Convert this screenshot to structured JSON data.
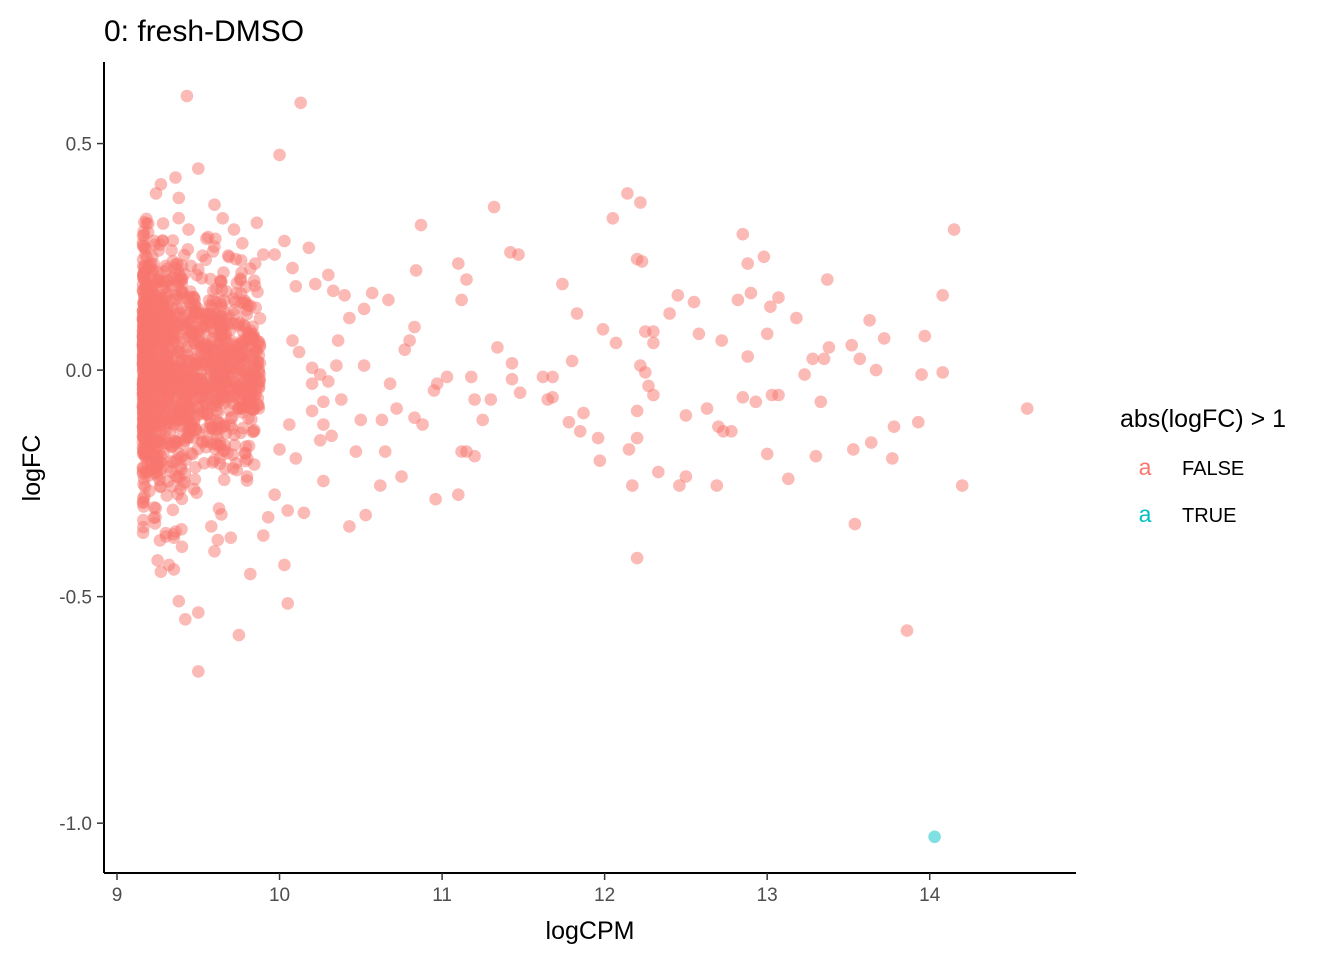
{
  "chart_data": {
    "type": "scatter",
    "title": "0: fresh-DMSO",
    "xlabel": "logCPM",
    "ylabel": "logFC",
    "xlim": [
      8.92,
      14.9
    ],
    "ylim": [
      -1.11,
      0.68
    ],
    "x_ticks": [
      "9",
      "10",
      "11",
      "12",
      "13",
      "14"
    ],
    "x_tick_values": [
      9,
      10,
      11,
      12,
      13,
      14
    ],
    "y_ticks": [
      "0.5",
      "0.0",
      "-0.5",
      "-1.0"
    ],
    "y_tick_values": [
      0.5,
      0.0,
      -0.5,
      -1.0
    ],
    "grid": false,
    "legend": {
      "title": "abs(logFC) > 1",
      "placement": "right",
      "entries": [
        {
          "label": "FALSE",
          "color": "#F8766D",
          "key": "a"
        },
        {
          "label": "TRUE",
          "color": "#00BFC4",
          "key": "a"
        }
      ]
    },
    "series": [
      {
        "name": "FALSE",
        "color": "#F8766D",
        "points": [
          [
            9.43,
            0.605
          ],
          [
            10.13,
            0.59
          ],
          [
            10.0,
            0.475
          ],
          [
            9.5,
            0.445
          ],
          [
            9.36,
            0.425
          ],
          [
            9.27,
            0.41
          ],
          [
            9.38,
            0.38
          ],
          [
            9.6,
            0.365
          ],
          [
            9.24,
            0.39
          ],
          [
            9.65,
            0.335
          ],
          [
            9.44,
            0.31
          ],
          [
            9.86,
            0.325
          ],
          [
            9.72,
            0.31
          ],
          [
            9.55,
            0.29
          ],
          [
            10.03,
            0.285
          ],
          [
            10.18,
            0.27
          ],
          [
            9.9,
            0.255
          ],
          [
            9.97,
            0.255
          ],
          [
            10.3,
            0.21
          ],
          [
            10.1,
            0.185
          ],
          [
            10.22,
            0.19
          ],
          [
            9.73,
            0.245
          ],
          [
            9.85,
            0.235
          ],
          [
            10.08,
            0.225
          ],
          [
            10.33,
            0.175
          ],
          [
            10.4,
            0.165
          ],
          [
            10.57,
            0.17
          ],
          [
            10.67,
            0.155
          ],
          [
            10.43,
            0.115
          ],
          [
            10.52,
            0.135
          ],
          [
            10.36,
            0.065
          ],
          [
            10.52,
            0.01
          ],
          [
            10.5,
            -0.11
          ],
          [
            10.47,
            -0.18
          ],
          [
            10.53,
            -0.32
          ],
          [
            10.43,
            -0.345
          ],
          [
            10.63,
            -0.11
          ],
          [
            10.65,
            -0.18
          ],
          [
            10.62,
            -0.255
          ],
          [
            10.75,
            -0.235
          ],
          [
            10.72,
            -0.085
          ],
          [
            10.68,
            -0.03
          ],
          [
            10.77,
            0.045
          ],
          [
            10.8,
            0.065
          ],
          [
            10.83,
            0.095
          ],
          [
            10.84,
            0.22
          ],
          [
            10.87,
            0.32
          ],
          [
            10.83,
            -0.105
          ],
          [
            10.88,
            -0.12
          ],
          [
            10.95,
            -0.045
          ],
          [
            10.97,
            -0.03
          ],
          [
            11.03,
            -0.015
          ],
          [
            10.96,
            -0.285
          ],
          [
            11.1,
            -0.275
          ],
          [
            11.12,
            -0.18
          ],
          [
            11.15,
            -0.18
          ],
          [
            11.2,
            -0.19
          ],
          [
            11.2,
            -0.065
          ],
          [
            11.25,
            -0.11
          ],
          [
            11.3,
            -0.065
          ],
          [
            11.18,
            -0.015
          ],
          [
            11.12,
            0.155
          ],
          [
            11.15,
            0.2
          ],
          [
            11.1,
            0.235
          ],
          [
            11.32,
            0.36
          ],
          [
            11.34,
            0.05
          ],
          [
            11.42,
            0.26
          ],
          [
            11.47,
            0.255
          ],
          [
            11.43,
            0.015
          ],
          [
            11.43,
            -0.02
          ],
          [
            11.48,
            -0.05
          ],
          [
            11.62,
            -0.015
          ],
          [
            11.68,
            -0.015
          ],
          [
            11.65,
            -0.065
          ],
          [
            11.68,
            -0.06
          ],
          [
            11.74,
            0.19
          ],
          [
            11.8,
            0.02
          ],
          [
            11.78,
            -0.115
          ],
          [
            11.83,
            0.125
          ],
          [
            11.85,
            -0.135
          ],
          [
            11.87,
            -0.095
          ],
          [
            11.96,
            -0.15
          ],
          [
            11.97,
            -0.2
          ],
          [
            11.99,
            0.09
          ],
          [
            12.05,
            0.335
          ],
          [
            12.07,
            0.06
          ],
          [
            12.14,
            0.39
          ],
          [
            12.22,
            0.37
          ],
          [
            12.2,
            0.245
          ],
          [
            12.23,
            0.24
          ],
          [
            12.25,
            0.085
          ],
          [
            12.3,
            0.085
          ],
          [
            12.15,
            -0.175
          ],
          [
            12.17,
            -0.255
          ],
          [
            12.2,
            -0.415
          ],
          [
            12.2,
            -0.15
          ],
          [
            12.2,
            -0.09
          ],
          [
            12.22,
            0.01
          ],
          [
            12.25,
            -0.005
          ],
          [
            12.27,
            -0.035
          ],
          [
            12.3,
            -0.055
          ],
          [
            12.3,
            0.06
          ],
          [
            12.33,
            -0.225
          ],
          [
            12.4,
            0.125
          ],
          [
            12.45,
            0.165
          ],
          [
            12.46,
            -0.255
          ],
          [
            12.5,
            -0.235
          ],
          [
            12.5,
            -0.1
          ],
          [
            12.55,
            0.15
          ],
          [
            12.58,
            0.08
          ],
          [
            12.63,
            -0.085
          ],
          [
            12.69,
            -0.255
          ],
          [
            12.7,
            -0.125
          ],
          [
            12.73,
            -0.135
          ],
          [
            12.72,
            0.065
          ],
          [
            12.78,
            -0.135
          ],
          [
            12.82,
            0.155
          ],
          [
            12.85,
            0.3
          ],
          [
            12.88,
            0.235
          ],
          [
            12.9,
            0.17
          ],
          [
            12.88,
            0.03
          ],
          [
            12.85,
            -0.06
          ],
          [
            12.93,
            -0.07
          ],
          [
            12.98,
            0.25
          ],
          [
            13.0,
            0.08
          ],
          [
            13.02,
            0.14
          ],
          [
            13.07,
            0.16
          ],
          [
            13.0,
            -0.185
          ],
          [
            13.03,
            -0.055
          ],
          [
            13.07,
            -0.055
          ],
          [
            13.13,
            -0.24
          ],
          [
            13.18,
            0.115
          ],
          [
            13.23,
            -0.01
          ],
          [
            13.28,
            0.025
          ],
          [
            13.3,
            -0.19
          ],
          [
            13.33,
            -0.07
          ],
          [
            13.35,
            0.025
          ],
          [
            13.37,
            0.2
          ],
          [
            13.38,
            0.05
          ],
          [
            13.52,
            0.055
          ],
          [
            13.53,
            -0.175
          ],
          [
            13.54,
            -0.34
          ],
          [
            13.57,
            0.025
          ],
          [
            13.63,
            0.11
          ],
          [
            13.64,
            -0.16
          ],
          [
            13.67,
            0.0
          ],
          [
            13.72,
            0.07
          ],
          [
            13.77,
            -0.195
          ],
          [
            13.78,
            -0.125
          ],
          [
            13.86,
            -0.575
          ],
          [
            13.93,
            -0.115
          ],
          [
            13.95,
            -0.01
          ],
          [
            13.97,
            0.075
          ],
          [
            14.08,
            -0.005
          ],
          [
            14.08,
            0.165
          ],
          [
            14.15,
            0.31
          ],
          [
            14.2,
            -0.255
          ],
          [
            14.6,
            -0.085
          ],
          [
            9.75,
            -0.585
          ],
          [
            9.5,
            -0.665
          ],
          [
            9.5,
            -0.535
          ],
          [
            9.38,
            -0.51
          ],
          [
            9.42,
            -0.55
          ],
          [
            9.82,
            -0.45
          ],
          [
            10.05,
            -0.515
          ],
          [
            10.03,
            -0.43
          ],
          [
            9.6,
            -0.4
          ],
          [
            9.7,
            -0.37
          ],
          [
            9.62,
            -0.375
          ],
          [
            9.9,
            -0.365
          ],
          [
            9.58,
            -0.345
          ],
          [
            9.93,
            -0.325
          ],
          [
            10.05,
            -0.31
          ],
          [
            10.15,
            -0.315
          ],
          [
            9.97,
            -0.275
          ],
          [
            10.27,
            -0.245
          ],
          [
            9.8,
            -0.235
          ],
          [
            10.1,
            -0.195
          ],
          [
            10.0,
            -0.175
          ],
          [
            10.25,
            -0.155
          ],
          [
            10.32,
            -0.145
          ],
          [
            10.27,
            -0.12
          ],
          [
            10.06,
            -0.12
          ],
          [
            10.2,
            -0.09
          ],
          [
            10.38,
            -0.065
          ],
          [
            10.27,
            -0.07
          ],
          [
            10.2,
            -0.03
          ],
          [
            10.3,
            -0.025
          ],
          [
            10.25,
            -0.01
          ],
          [
            10.35,
            0.01
          ],
          [
            10.2,
            0.005
          ],
          [
            10.08,
            0.065
          ],
          [
            10.12,
            0.04
          ],
          [
            9.27,
            -0.445
          ],
          [
            9.35,
            -0.44
          ],
          [
            9.32,
            -0.43
          ],
          [
            9.25,
            -0.42
          ],
          [
            9.4,
            -0.39
          ],
          [
            9.3,
            -0.36
          ],
          [
            9.35,
            -0.37
          ]
        ]
      },
      {
        "name": "TRUE",
        "color": "#00BFC4",
        "points": [
          [
            14.03,
            -1.03
          ]
        ]
      }
    ]
  }
}
